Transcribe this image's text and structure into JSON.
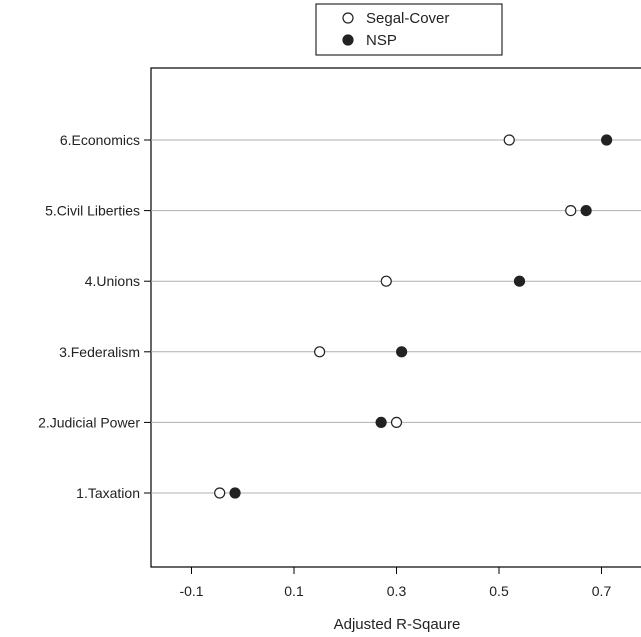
{
  "chart_data": {
    "type": "scatter",
    "title": "",
    "xlabel": "Adjusted R-Sqaure",
    "ylabel": "",
    "xlim": [
      -0.15,
      0.74
    ],
    "xticks": [
      -0.1,
      0.1,
      0.3,
      0.5,
      0.7
    ],
    "xtick_labels": [
      "-0.1",
      "0.1",
      "0.3",
      "0.5",
      "0.7"
    ],
    "categories": [
      "1.Taxation",
      "2.Judicial Power",
      "3.Federalism",
      "4.Unions",
      "5.Civil Liberties",
      "6.Economics"
    ],
    "series": [
      {
        "name": "Segal-Cover",
        "marker": "open-circle",
        "values": [
          -0.045,
          0.3,
          0.15,
          0.28,
          0.64,
          0.52
        ]
      },
      {
        "name": "NSP",
        "marker": "filled-circle",
        "values": [
          -0.015,
          0.27,
          0.31,
          0.54,
          0.67,
          0.71
        ]
      }
    ],
    "grid": "horizontal",
    "legend_position": "top-center",
    "colors": {
      "marker": "#222222",
      "gridline": "#b0b0b0",
      "axis": "#000000"
    }
  }
}
